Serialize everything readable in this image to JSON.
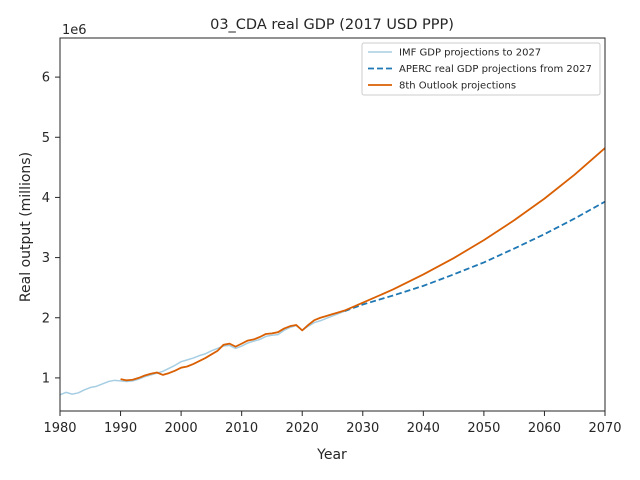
{
  "chart_data": {
    "type": "line",
    "title": "03_CDA real GDP (2017 USD PPP)",
    "xlabel": "Year",
    "ylabel": "Real output (millions)",
    "y_offset_label": "1e6",
    "xlim": [
      1980,
      2070
    ],
    "ylim": [
      450000,
      6650000
    ],
    "x_ticks": [
      1980,
      1990,
      2000,
      2010,
      2020,
      2030,
      2040,
      2050,
      2060,
      2070
    ],
    "y_ticks": [
      1000000,
      2000000,
      3000000,
      4000000,
      5000000,
      6000000
    ],
    "y_tick_labels": [
      "1",
      "2",
      "3",
      "4",
      "5",
      "6"
    ],
    "legend_position": "top-right",
    "grid": false,
    "series": [
      {
        "name": "IMF GDP projections to 2027",
        "color": "#a6cee3",
        "style": "solid",
        "x": [
          1980,
          1981,
          1982,
          1983,
          1984,
          1985,
          1986,
          1987,
          1988,
          1989,
          1990,
          1991,
          1992,
          1993,
          1994,
          1995,
          1996,
          1997,
          1998,
          1999,
          2000,
          2001,
          2002,
          2003,
          2004,
          2005,
          2006,
          2007,
          2008,
          2009,
          2010,
          2011,
          2012,
          2013,
          2014,
          2015,
          2016,
          2017,
          2018,
          2019,
          2020,
          2021,
          2022,
          2023,
          2024,
          2025,
          2026,
          2027
        ],
        "y": [
          720000,
          760000,
          730000,
          750000,
          800000,
          840000,
          860000,
          900000,
          940000,
          960000,
          950000,
          940000,
          950000,
          980000,
          1020000,
          1050000,
          1080000,
          1110000,
          1160000,
          1210000,
          1270000,
          1300000,
          1330000,
          1370000,
          1400000,
          1450000,
          1490000,
          1530000,
          1540000,
          1490000,
          1530000,
          1580000,
          1610000,
          1640000,
          1690000,
          1710000,
          1720000,
          1790000,
          1840000,
          1870000,
          1790000,
          1860000,
          1920000,
          1950000,
          1990000,
          2030000,
          2070000,
          2110000
        ]
      },
      {
        "name": "APERC real GDP projections from 2027",
        "color": "#1f78b4",
        "style": "dashed",
        "x": [
          2027,
          2030,
          2035,
          2040,
          2045,
          2050,
          2055,
          2060,
          2065,
          2070
        ],
        "y": [
          2110000,
          2220000,
          2370000,
          2530000,
          2720000,
          2920000,
          3150000,
          3390000,
          3650000,
          3930000
        ]
      },
      {
        "name": "8th Outlook projections",
        "color": "#d95f02",
        "style": "solid",
        "x": [
          1990,
          1991,
          1992,
          1993,
          1994,
          1995,
          1996,
          1997,
          1998,
          1999,
          2000,
          2001,
          2002,
          2003,
          2004,
          2005,
          2006,
          2007,
          2008,
          2009,
          2010,
          2011,
          2012,
          2013,
          2014,
          2015,
          2016,
          2017,
          2018,
          2019,
          2020,
          2021,
          2022,
          2023,
          2024,
          2025,
          2026,
          2027,
          2030,
          2035,
          2040,
          2045,
          2050,
          2055,
          2060,
          2065,
          2070
        ],
        "y": [
          980000,
          960000,
          970000,
          1000000,
          1040000,
          1070000,
          1090000,
          1050000,
          1080000,
          1120000,
          1170000,
          1190000,
          1230000,
          1280000,
          1330000,
          1390000,
          1450000,
          1550000,
          1570000,
          1520000,
          1570000,
          1620000,
          1640000,
          1680000,
          1730000,
          1740000,
          1760000,
          1820000,
          1860000,
          1880000,
          1790000,
          1880000,
          1960000,
          2000000,
          2030000,
          2060000,
          2090000,
          2120000,
          2250000,
          2470000,
          2720000,
          2990000,
          3290000,
          3620000,
          3980000,
          4380000,
          4820000
        ]
      }
    ]
  }
}
